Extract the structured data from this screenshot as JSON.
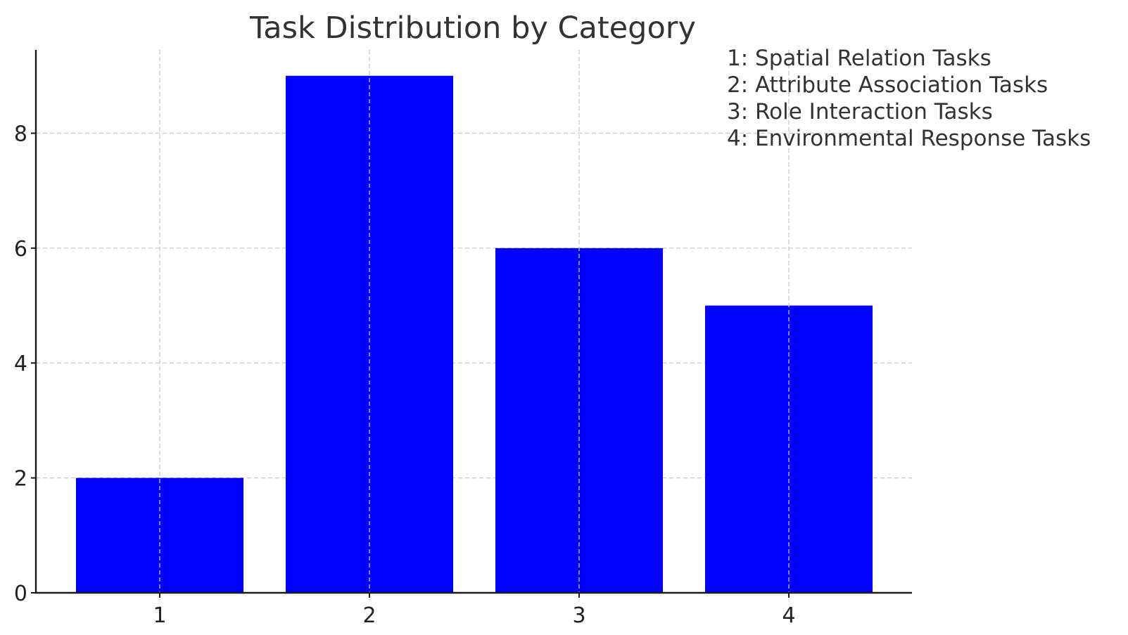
{
  "chart_data": {
    "type": "bar",
    "title": "Task Distribution by Category",
    "xlabel": "",
    "ylabel": "",
    "categories": [
      "1",
      "2",
      "3",
      "4"
    ],
    "values": [
      2,
      9,
      6,
      5
    ],
    "bar_color": "#0000ff",
    "ylim": [
      0,
      9.45
    ],
    "yticks": [
      0,
      2,
      4,
      6,
      8
    ],
    "grid": true,
    "legend_position": "top-right",
    "legend": [
      "1: Spatial Relation Tasks",
      "2: Attribute Association Tasks",
      "3: Role Interaction Tasks",
      "4: Environmental Response Tasks"
    ]
  }
}
